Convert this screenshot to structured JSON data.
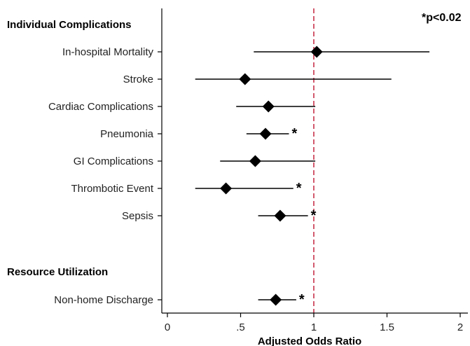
{
  "chart_data": {
    "type": "forest",
    "xlabel": "Adjusted Odds Ratio",
    "xlim": [
      0,
      2
    ],
    "xticks": [
      {
        "value": 0,
        "label": "0"
      },
      {
        "value": 0.5,
        "label": ".5"
      },
      {
        "value": 1,
        "label": "1"
      },
      {
        "value": 1.5,
        "label": "1.5"
      },
      {
        "value": 2,
        "label": "2"
      }
    ],
    "reference_line": {
      "value": 1,
      "style": "dashed",
      "color": "#c8324a"
    },
    "significance_note": "*p<0.02",
    "significance_marker": "*",
    "sections": [
      {
        "title": "Individual Complications",
        "items": [
          {
            "label": "In-hospital Mortality",
            "or": 1.02,
            "lo": 0.59,
            "hi": 1.79,
            "significant": false
          },
          {
            "label": "Stroke",
            "or": 0.53,
            "lo": 0.19,
            "hi": 1.53,
            "significant": false
          },
          {
            "label": "Cardiac Complications",
            "or": 0.69,
            "lo": 0.47,
            "hi": 1.01,
            "significant": false
          },
          {
            "label": "Pneumonia",
            "or": 0.67,
            "lo": 0.54,
            "hi": 0.83,
            "significant": true
          },
          {
            "label": "GI Complications",
            "or": 0.6,
            "lo": 0.36,
            "hi": 1.01,
            "significant": false
          },
          {
            "label": "Thrombotic Event",
            "or": 0.4,
            "lo": 0.19,
            "hi": 0.86,
            "significant": true
          },
          {
            "label": "Sepsis",
            "or": 0.77,
            "lo": 0.62,
            "hi": 0.96,
            "significant": true
          }
        ]
      },
      {
        "title": "Resource Utilization",
        "items": [
          {
            "label": "Non-home Discharge",
            "or": 0.74,
            "lo": 0.62,
            "hi": 0.88,
            "significant": true
          }
        ]
      }
    ],
    "colors": {
      "marker": "#000000",
      "axis": "#000000",
      "reference": "#c8324a"
    }
  }
}
